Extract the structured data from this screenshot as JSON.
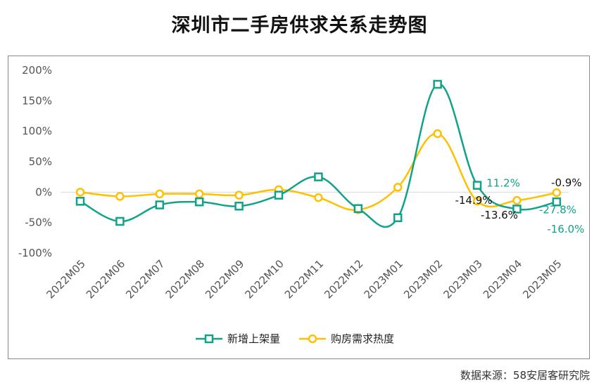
{
  "title": "深圳市二手房供求关系走势图",
  "source": "数据来源：58安居客研究院",
  "chart_data": {
    "type": "line",
    "categories": [
      "2022M05",
      "2022M06",
      "2022M07",
      "2022M08",
      "2022M09",
      "2022M10",
      "2022M11",
      "2022M12",
      "2023M01",
      "2023M02",
      "2023M03",
      "2023M04",
      "2023M05"
    ],
    "series": [
      {
        "name": "新增上架量",
        "color": "#11a38a",
        "values": [
          -15,
          -48,
          -21,
          -16,
          -23,
          -5,
          25,
          -27,
          -42,
          177,
          11.2,
          -27.8,
          -16.0
        ]
      },
      {
        "name": "购房需求热度",
        "color": "#ffc000",
        "values": [
          0,
          -7,
          -3,
          -3,
          -5,
          4,
          -9,
          -29,
          8,
          96,
          -14.9,
          -13.6,
          -0.9
        ]
      }
    ],
    "ylim": [
      -100,
      200
    ],
    "yticks": [
      "200%",
      "150%",
      "100%",
      "50%",
      "0%",
      "-50%",
      "-100%"
    ],
    "ytick_values": [
      200,
      150,
      100,
      50,
      0,
      -50,
      -100
    ],
    "data_labels": [
      {
        "series": 0,
        "index": 10,
        "text": "11.2%"
      },
      {
        "series": 0,
        "index": 11,
        "text": "-27.8%"
      },
      {
        "series": 0,
        "index": 12,
        "text": "-16.0%"
      },
      {
        "series": 1,
        "index": 10,
        "text": "-14.9%"
      },
      {
        "series": 1,
        "index": 11,
        "text": "-13.6%"
      },
      {
        "series": 1,
        "index": 12,
        "text": "-0.9%"
      }
    ],
    "legend": [
      "新增上架量",
      "购房需求热度"
    ],
    "legend_position": "bottom"
  }
}
